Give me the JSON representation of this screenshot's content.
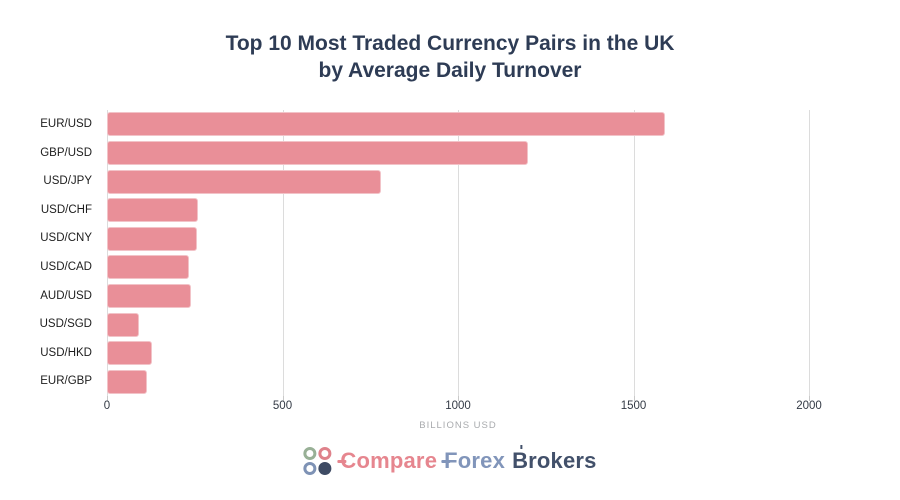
{
  "title": {
    "line1": "Top 10 Most Traded Currency Pairs in the UK",
    "line2": "by Average Daily Turnover"
  },
  "chart_data": {
    "type": "bar",
    "orientation": "horizontal",
    "title": "Top 10 Most Traded Currency Pairs in the UK by Average Daily Turnover",
    "categories": [
      "EUR/USD",
      "GBP/USD",
      "USD/JPY",
      "USD/CHF",
      "USD/CNY",
      "USD/CAD",
      "AUD/USD",
      "USD/SGD",
      "USD/HKD",
      "EUR/GBP"
    ],
    "values": [
      1590,
      1200,
      780,
      260,
      255,
      235,
      240,
      90,
      128,
      115
    ],
    "xlabel": "BILLIONS USD",
    "ylabel": "",
    "xticks": [
      0,
      500,
      1000,
      1500,
      2000
    ],
    "xlim": [
      0,
      2000
    ],
    "grid": "vertical-gridlines",
    "legend": "none",
    "bar_color": "#e98f98"
  },
  "footer": {
    "logo": {
      "icon_circles": [
        {
          "style": "ring",
          "color": "#98b096"
        },
        {
          "style": "ring",
          "color": "#df828b"
        },
        {
          "style": "ring",
          "color": "#7e92b5"
        },
        {
          "style": "solid",
          "color": "#3e4b64"
        }
      ],
      "words": [
        {
          "text": "Compare",
          "color": "#e6868f",
          "deco": "crossbar"
        },
        {
          "text": "Forex",
          "color": "#8195ba",
          "deco": "crossbar"
        },
        {
          "text": "Brokers",
          "color": "#42506a",
          "deco": "vtick"
        }
      ]
    }
  },
  "colors": {
    "background": "#ffffff",
    "title_text": "#2e3c55",
    "bar_fill": "#e98f98",
    "gridline": "#dcdcdc",
    "tick_text": "#333a45",
    "axis_label_text": "#a9abae",
    "category_text": "#1d1d1d"
  }
}
